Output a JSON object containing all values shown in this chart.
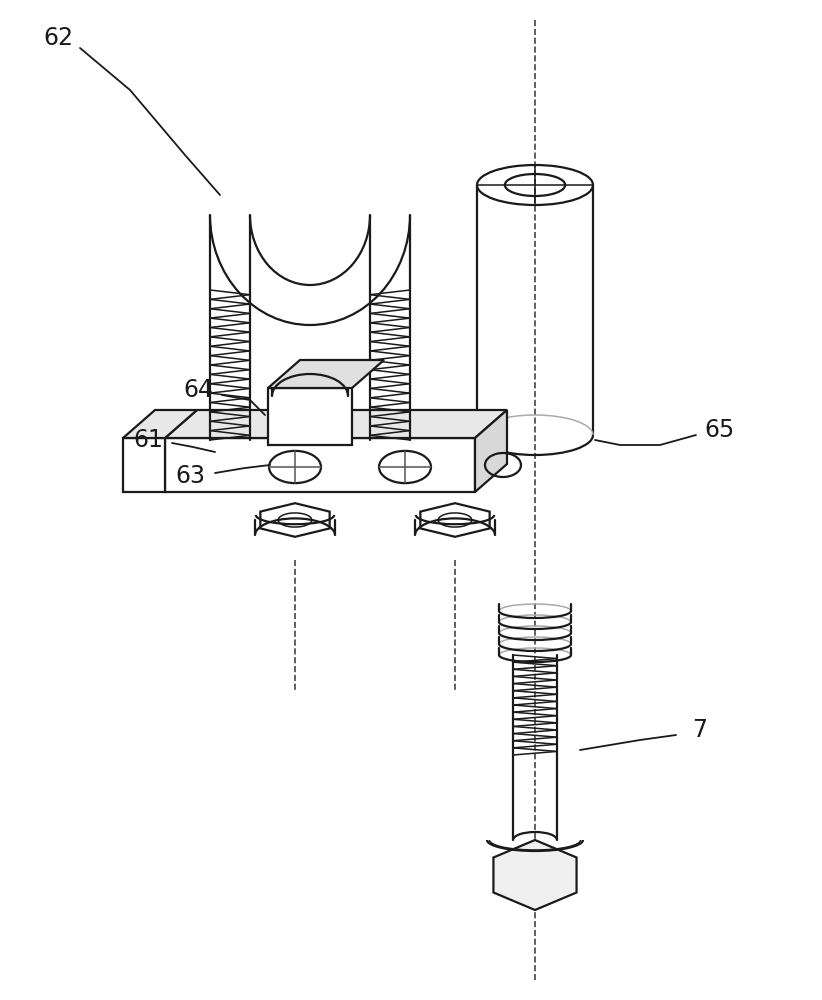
{
  "background_color": "#ffffff",
  "line_color": "#1a1a1a",
  "lw": 1.6,
  "tlw": 1.1,
  "label_fontsize": 17,
  "fig_w": 8.22,
  "fig_h": 10.0,
  "dpi": 100
}
